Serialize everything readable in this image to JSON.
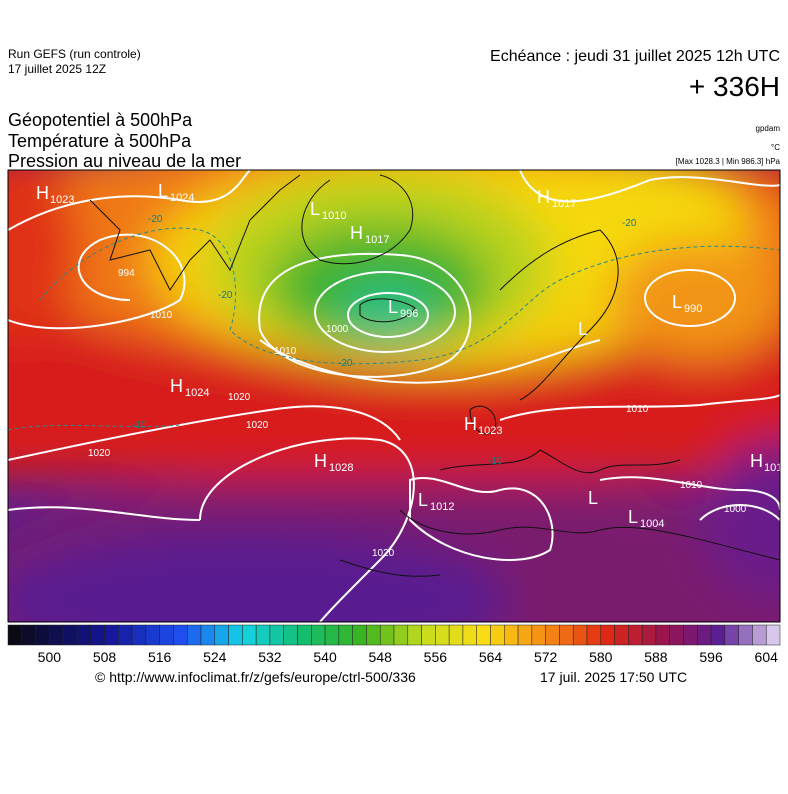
{
  "header": {
    "run": "Run GEFS (run controle)",
    "date": "17 juillet 2025 12Z",
    "echeance": "Echéance : jeudi 31 juillet 2025 12h UTC",
    "lead": "+ 336H"
  },
  "titles": [
    "Géopotentiel à 500hPa",
    "Température à 500hPa",
    "Pression au niveau de la mer"
  ],
  "units": [
    "gpdam",
    "°C",
    "[Max 1028.3 | Min 986.3] hPa"
  ],
  "pressure_centers": [
    {
      "letter": "H",
      "value": "1023"
    },
    {
      "letter": "L",
      "value": "1024"
    },
    {
      "letter": "L",
      "value": "1010"
    },
    {
      "letter": "H",
      "value": "1017"
    },
    {
      "letter": "L",
      "value": "996"
    },
    {
      "letter": "H",
      "value": "1017"
    },
    {
      "letter": "L",
      "value": "990"
    },
    {
      "letter": "L"
    },
    {
      "letter": "H",
      "value": "1024"
    },
    {
      "letter": "H",
      "value": "1023"
    },
    {
      "letter": "H",
      "value": "1028"
    },
    {
      "letter": "L",
      "value": "1012"
    },
    {
      "letter": "L",
      "value": "1004"
    },
    {
      "letter": "L"
    },
    {
      "letter": "H",
      "value": "101"
    }
  ],
  "isobar_labels": [
    "994",
    "1010",
    "1020",
    "1020",
    "1020",
    "1000",
    "1010",
    "1020",
    "1010",
    "1000",
    "1010"
  ],
  "temperature_labels": [
    "-20",
    "-20",
    "-20",
    "-20",
    "-10",
    "-10"
  ],
  "colorbar": {
    "labels": [
      "500",
      "508",
      "516",
      "524",
      "532",
      "540",
      "548",
      "556",
      "564",
      "572",
      "580",
      "588",
      "596",
      "604"
    ]
  },
  "footer": {
    "source": "© http://www.infoclimat.fr/z/gefs/europe/ctrl-500/336",
    "generated": "17 juil. 2025 17:50 UTC"
  }
}
